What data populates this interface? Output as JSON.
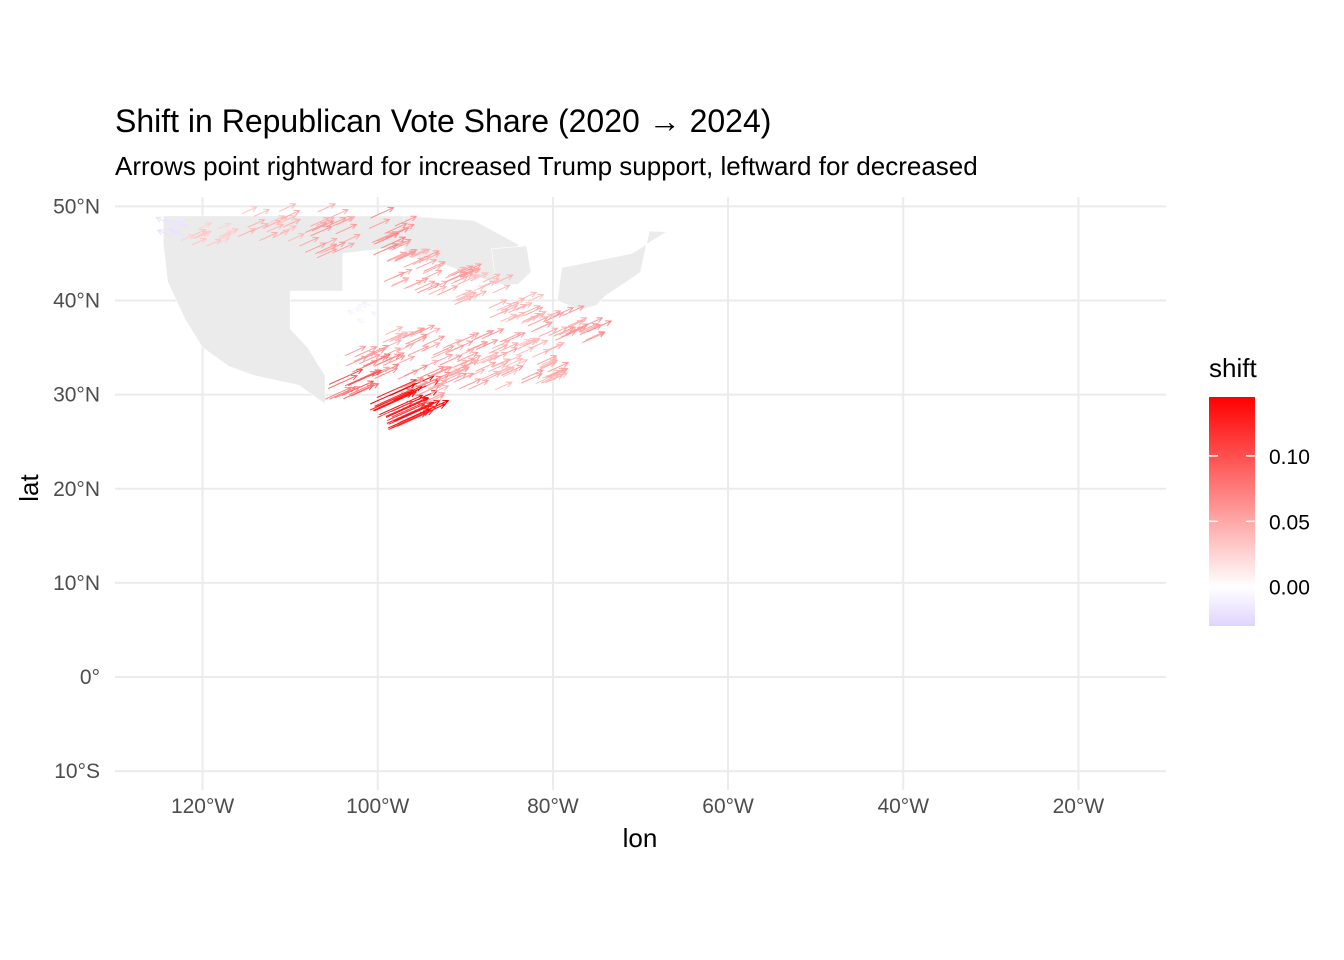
{
  "chart_data": {
    "type": "map",
    "title": "Shift in Republican Vote Share (2020 → 2024)",
    "subtitle": "Arrows point rightward for increased Trump support, leftward for decreased",
    "xlabel": "lon",
    "ylabel": "lat",
    "xlim": [
      -130,
      -10
    ],
    "ylim": [
      -12,
      51
    ],
    "x_ticks": [
      {
        "value": -120,
        "label": "120°W"
      },
      {
        "value": -100,
        "label": "100°W"
      },
      {
        "value": -80,
        "label": "80°W"
      },
      {
        "value": -60,
        "label": "60°W"
      },
      {
        "value": -40,
        "label": "40°W"
      },
      {
        "value": -20,
        "label": "20°W"
      }
    ],
    "y_ticks": [
      {
        "value": 50,
        "label": "50°N"
      },
      {
        "value": 40,
        "label": "40°N"
      },
      {
        "value": 30,
        "label": "30°N"
      },
      {
        "value": 20,
        "label": "20°N"
      },
      {
        "value": 10,
        "label": "10°N"
      },
      {
        "value": 0,
        "label": "0°"
      },
      {
        "value": -10,
        "label": "10°S"
      }
    ],
    "legend": {
      "title": "shift",
      "placement": "right",
      "range": [
        -0.03,
        0.145
      ],
      "ticks": [
        {
          "value": 0.1,
          "label": "0.10"
        },
        {
          "value": 0.05,
          "label": "0.05"
        },
        {
          "value": 0.0,
          "label": "0.00"
        }
      ],
      "colors": {
        "low": "#e0d4ff",
        "mid": "#ffffff",
        "high": "#ff0000"
      }
    },
    "background_regions_color": "#ebebeb",
    "arrow_clusters": [
      {
        "lon": -123,
        "lat": 47.5,
        "shift": -0.02,
        "spread_lon": 1.5,
        "spread_lat": 1.0,
        "count": 8
      },
      {
        "lon": -120,
        "lat": 47.0,
        "shift": 0.03,
        "spread_lon": 2.5,
        "spread_lat": 1.5,
        "count": 14
      },
      {
        "lon": -113,
        "lat": 47.5,
        "shift": 0.04,
        "spread_lon": 3.0,
        "spread_lat": 2.0,
        "count": 18
      },
      {
        "lon": -106,
        "lat": 47.0,
        "shift": 0.05,
        "spread_lon": 3.0,
        "spread_lat": 2.5,
        "count": 20
      },
      {
        "lon": -100,
        "lat": 46.5,
        "shift": 0.06,
        "spread_lon": 2.0,
        "spread_lat": 2.5,
        "count": 16
      },
      {
        "lon": -97,
        "lat": 43.0,
        "shift": 0.05,
        "spread_lon": 2.5,
        "spread_lat": 2.0,
        "count": 18
      },
      {
        "lon": -93,
        "lat": 42.0,
        "shift": 0.05,
        "spread_lon": 2.5,
        "spread_lat": 1.5,
        "count": 18
      },
      {
        "lon": -89,
        "lat": 41.0,
        "shift": 0.04,
        "spread_lon": 2.5,
        "spread_lat": 1.5,
        "count": 16
      },
      {
        "lon": -85,
        "lat": 39.0,
        "shift": 0.04,
        "spread_lon": 2.5,
        "spread_lat": 1.5,
        "count": 16
      },
      {
        "lon": -81,
        "lat": 37.0,
        "shift": 0.05,
        "spread_lon": 2.5,
        "spread_lat": 1.5,
        "count": 16
      },
      {
        "lon": -78,
        "lat": 36.5,
        "shift": 0.06,
        "spread_lon": 2.0,
        "spread_lat": 1.0,
        "count": 12
      },
      {
        "lon": -83,
        "lat": 34.0,
        "shift": 0.04,
        "spread_lon": 2.5,
        "spread_lat": 1.5,
        "count": 16
      },
      {
        "lon": -88,
        "lat": 34.0,
        "shift": 0.05,
        "spread_lon": 2.5,
        "spread_lat": 2.0,
        "count": 18
      },
      {
        "lon": -93,
        "lat": 34.5,
        "shift": 0.05,
        "spread_lon": 2.5,
        "spread_lat": 2.0,
        "count": 18
      },
      {
        "lon": -98,
        "lat": 35.0,
        "shift": 0.05,
        "spread_lon": 2.5,
        "spread_lat": 2.0,
        "count": 18
      },
      {
        "lon": -102,
        "lat": 33.0,
        "shift": 0.07,
        "spread_lon": 2.0,
        "spread_lat": 1.5,
        "count": 14
      },
      {
        "lon": -104,
        "lat": 30.5,
        "shift": 0.09,
        "spread_lon": 2.0,
        "spread_lat": 1.0,
        "count": 12
      },
      {
        "lon": -99.5,
        "lat": 28.5,
        "shift": 0.13,
        "spread_lon": 1.5,
        "spread_lat": 1.5,
        "count": 16
      },
      {
        "lon": -98,
        "lat": 26.8,
        "shift": 0.14,
        "spread_lon": 1.0,
        "spread_lat": 0.8,
        "count": 12
      },
      {
        "lon": -96,
        "lat": 30.5,
        "shift": 0.06,
        "spread_lon": 2.0,
        "spread_lat": 1.5,
        "count": 14
      },
      {
        "lon": -92,
        "lat": 31.5,
        "shift": 0.05,
        "spread_lon": 2.5,
        "spread_lat": 1.5,
        "count": 14
      },
      {
        "lon": -87,
        "lat": 32.0,
        "shift": 0.04,
        "spread_lon": 2.0,
        "spread_lat": 1.5,
        "count": 12
      },
      {
        "lon": -82,
        "lat": 32.0,
        "shift": 0.05,
        "spread_lon": 2.0,
        "spread_lat": 1.5,
        "count": 12
      },
      {
        "lon": -101,
        "lat": 38.5,
        "shift": -0.01,
        "spread_lon": 1.5,
        "spread_lat": 1.0,
        "count": 6
      }
    ]
  }
}
